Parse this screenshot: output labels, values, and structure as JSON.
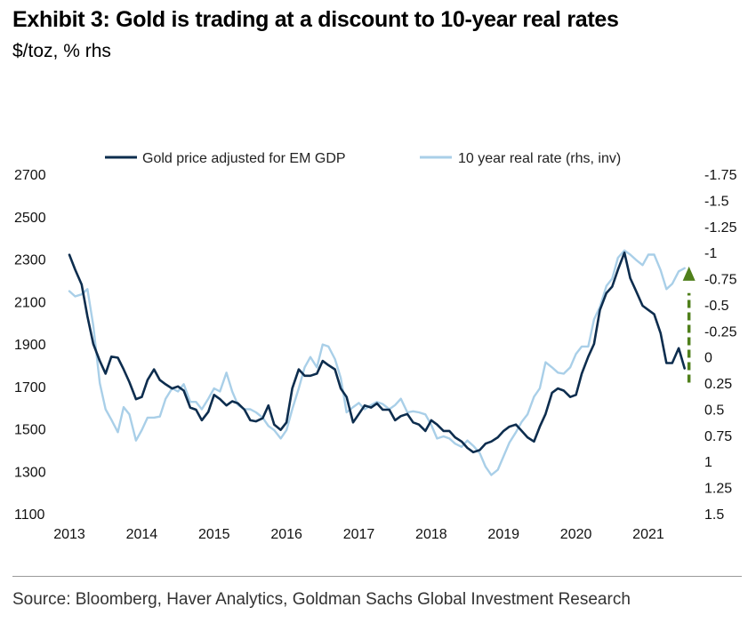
{
  "header": {
    "title": "Exhibit 3: Gold is trading at a discount to 10-year real rates",
    "subtitle": "$/toz, % rhs"
  },
  "footer": {
    "source": "Source: Bloomberg, Haver Analytics, Goldman Sachs Global Investment Research"
  },
  "colors": {
    "gold_series": "#0d2d4e",
    "real_rate_series": "#a9cfe8",
    "arrow": "#4f7f1b"
  },
  "chart_data": {
    "type": "line",
    "title": "Exhibit 3: Gold is trading at a discount to 10-year real rates",
    "subtitle": "$/toz, % rhs",
    "x_range": [
      2013.0,
      2021.75
    ],
    "x_tick_labels": [
      "2013",
      "2014",
      "2015",
      "2016",
      "2017",
      "2018",
      "2019",
      "2020",
      "2021"
    ],
    "y_left": {
      "range": [
        1100,
        2700
      ],
      "ticks": [
        "2700",
        "2500",
        "2300",
        "2100",
        "1900",
        "1700",
        "1500",
        "1300",
        "1100"
      ]
    },
    "y_right": {
      "range": [
        1.5,
        -1.75
      ],
      "inverted": true,
      "ticks": [
        "-1.75",
        "-1.5",
        "-1.25",
        "-1",
        "-0.75",
        "-0.5",
        "-0.25",
        "0",
        "0.25",
        "0.5",
        "0.75",
        "1",
        "1.25",
        "1.5"
      ]
    },
    "legend_position": "top",
    "annotation": "dashed upward arrow near the latest gold value",
    "series": [
      {
        "name": "Gold price adjusted for EM GDP",
        "axis": "left",
        "points": [
          [
            2013.0,
            2320
          ],
          [
            2013.08,
            2250
          ],
          [
            2013.17,
            2180
          ],
          [
            2013.25,
            2030
          ],
          [
            2013.33,
            1900
          ],
          [
            2013.42,
            1820
          ],
          [
            2013.5,
            1760
          ],
          [
            2013.58,
            1840
          ],
          [
            2013.67,
            1835
          ],
          [
            2013.75,
            1780
          ],
          [
            2013.83,
            1720
          ],
          [
            2013.92,
            1640
          ],
          [
            2014.0,
            1650
          ],
          [
            2014.08,
            1730
          ],
          [
            2014.17,
            1780
          ],
          [
            2014.25,
            1730
          ],
          [
            2014.33,
            1710
          ],
          [
            2014.42,
            1690
          ],
          [
            2014.5,
            1700
          ],
          [
            2014.58,
            1680
          ],
          [
            2014.67,
            1600
          ],
          [
            2014.75,
            1590
          ],
          [
            2014.83,
            1540
          ],
          [
            2014.92,
            1580
          ],
          [
            2015.0,
            1660
          ],
          [
            2015.08,
            1640
          ],
          [
            2015.17,
            1610
          ],
          [
            2015.25,
            1630
          ],
          [
            2015.33,
            1620
          ],
          [
            2015.42,
            1590
          ],
          [
            2015.5,
            1540
          ],
          [
            2015.58,
            1535
          ],
          [
            2015.67,
            1550
          ],
          [
            2015.75,
            1610
          ],
          [
            2015.83,
            1520
          ],
          [
            2015.92,
            1495
          ],
          [
            2016.0,
            1530
          ],
          [
            2016.08,
            1690
          ],
          [
            2016.17,
            1780
          ],
          [
            2016.25,
            1750
          ],
          [
            2016.33,
            1750
          ],
          [
            2016.42,
            1760
          ],
          [
            2016.5,
            1820
          ],
          [
            2016.58,
            1800
          ],
          [
            2016.67,
            1780
          ],
          [
            2016.75,
            1690
          ],
          [
            2016.83,
            1650
          ],
          [
            2016.92,
            1530
          ],
          [
            2017.0,
            1570
          ],
          [
            2017.08,
            1610
          ],
          [
            2017.17,
            1600
          ],
          [
            2017.25,
            1620
          ],
          [
            2017.33,
            1590
          ],
          [
            2017.42,
            1590
          ],
          [
            2017.5,
            1540
          ],
          [
            2017.58,
            1560
          ],
          [
            2017.67,
            1570
          ],
          [
            2017.75,
            1530
          ],
          [
            2017.83,
            1520
          ],
          [
            2017.92,
            1490
          ],
          [
            2018.0,
            1540
          ],
          [
            2018.08,
            1520
          ],
          [
            2018.17,
            1490
          ],
          [
            2018.25,
            1490
          ],
          [
            2018.33,
            1460
          ],
          [
            2018.42,
            1440
          ],
          [
            2018.5,
            1410
          ],
          [
            2018.58,
            1390
          ],
          [
            2018.67,
            1400
          ],
          [
            2018.75,
            1430
          ],
          [
            2018.83,
            1440
          ],
          [
            2018.92,
            1460
          ],
          [
            2019.0,
            1490
          ],
          [
            2019.08,
            1510
          ],
          [
            2019.17,
            1520
          ],
          [
            2019.25,
            1490
          ],
          [
            2019.33,
            1460
          ],
          [
            2019.42,
            1440
          ],
          [
            2019.5,
            1510
          ],
          [
            2019.58,
            1570
          ],
          [
            2019.67,
            1670
          ],
          [
            2019.75,
            1690
          ],
          [
            2019.83,
            1680
          ],
          [
            2019.92,
            1650
          ],
          [
            2020.0,
            1660
          ],
          [
            2020.08,
            1760
          ],
          [
            2020.17,
            1840
          ],
          [
            2020.25,
            1900
          ],
          [
            2020.33,
            2060
          ],
          [
            2020.42,
            2140
          ],
          [
            2020.5,
            2170
          ],
          [
            2020.58,
            2250
          ],
          [
            2020.67,
            2330
          ],
          [
            2020.75,
            2210
          ],
          [
            2020.83,
            2150
          ],
          [
            2020.92,
            2080
          ],
          [
            2021.0,
            2060
          ],
          [
            2021.08,
            2040
          ],
          [
            2021.17,
            1950
          ],
          [
            2021.25,
            1810
          ],
          [
            2021.33,
            1810
          ],
          [
            2021.42,
            1880
          ],
          [
            2021.5,
            1785
          ]
        ]
      },
      {
        "name": "10 year real rate (rhs, inv)",
        "axis": "right",
        "points": [
          [
            2013.0,
            -0.63
          ],
          [
            2013.08,
            -0.58
          ],
          [
            2013.17,
            -0.6
          ],
          [
            2013.25,
            -0.65
          ],
          [
            2013.33,
            -0.3
          ],
          [
            2013.42,
            0.25
          ],
          [
            2013.5,
            0.5
          ],
          [
            2013.58,
            0.6
          ],
          [
            2013.67,
            0.72
          ],
          [
            2013.75,
            0.48
          ],
          [
            2013.83,
            0.55
          ],
          [
            2013.92,
            0.8
          ],
          [
            2014.0,
            0.7
          ],
          [
            2014.08,
            0.58
          ],
          [
            2014.17,
            0.58
          ],
          [
            2014.25,
            0.57
          ],
          [
            2014.33,
            0.4
          ],
          [
            2014.42,
            0.3
          ],
          [
            2014.5,
            0.33
          ],
          [
            2014.58,
            0.26
          ],
          [
            2014.67,
            0.43
          ],
          [
            2014.75,
            0.43
          ],
          [
            2014.83,
            0.5
          ],
          [
            2014.92,
            0.4
          ],
          [
            2015.0,
            0.3
          ],
          [
            2015.08,
            0.33
          ],
          [
            2015.17,
            0.15
          ],
          [
            2015.25,
            0.33
          ],
          [
            2015.33,
            0.46
          ],
          [
            2015.42,
            0.5
          ],
          [
            2015.5,
            0.5
          ],
          [
            2015.58,
            0.53
          ],
          [
            2015.67,
            0.58
          ],
          [
            2015.75,
            0.66
          ],
          [
            2015.83,
            0.7
          ],
          [
            2015.92,
            0.78
          ],
          [
            2016.0,
            0.7
          ],
          [
            2016.08,
            0.5
          ],
          [
            2016.17,
            0.3
          ],
          [
            2016.25,
            0.1
          ],
          [
            2016.33,
            0.0
          ],
          [
            2016.42,
            0.1
          ],
          [
            2016.5,
            -0.12
          ],
          [
            2016.58,
            -0.1
          ],
          [
            2016.67,
            0.02
          ],
          [
            2016.75,
            0.2
          ],
          [
            2016.83,
            0.53
          ],
          [
            2016.92,
            0.48
          ],
          [
            2017.0,
            0.44
          ],
          [
            2017.08,
            0.5
          ],
          [
            2017.17,
            0.46
          ],
          [
            2017.25,
            0.43
          ],
          [
            2017.33,
            0.45
          ],
          [
            2017.42,
            0.5
          ],
          [
            2017.5,
            0.46
          ],
          [
            2017.58,
            0.4
          ],
          [
            2017.67,
            0.53
          ],
          [
            2017.75,
            0.52
          ],
          [
            2017.83,
            0.53
          ],
          [
            2017.92,
            0.55
          ],
          [
            2018.0,
            0.65
          ],
          [
            2018.08,
            0.78
          ],
          [
            2018.17,
            0.76
          ],
          [
            2018.25,
            0.78
          ],
          [
            2018.33,
            0.83
          ],
          [
            2018.42,
            0.86
          ],
          [
            2018.5,
            0.8
          ],
          [
            2018.58,
            0.85
          ],
          [
            2018.67,
            0.92
          ],
          [
            2018.75,
            1.05
          ],
          [
            2018.83,
            1.13
          ],
          [
            2018.92,
            1.08
          ],
          [
            2019.0,
            0.95
          ],
          [
            2019.08,
            0.82
          ],
          [
            2019.17,
            0.72
          ],
          [
            2019.25,
            0.62
          ],
          [
            2019.33,
            0.55
          ],
          [
            2019.42,
            0.38
          ],
          [
            2019.5,
            0.3
          ],
          [
            2019.58,
            0.05
          ],
          [
            2019.67,
            0.1
          ],
          [
            2019.75,
            0.15
          ],
          [
            2019.83,
            0.16
          ],
          [
            2019.92,
            0.1
          ],
          [
            2020.0,
            -0.03
          ],
          [
            2020.08,
            -0.1
          ],
          [
            2020.17,
            -0.1
          ],
          [
            2020.25,
            -0.36
          ],
          [
            2020.33,
            -0.48
          ],
          [
            2020.42,
            -0.68
          ],
          [
            2020.5,
            -0.75
          ],
          [
            2020.58,
            -0.95
          ],
          [
            2020.67,
            -1.02
          ],
          [
            2020.75,
            -0.98
          ],
          [
            2020.83,
            -0.93
          ],
          [
            2020.92,
            -0.88
          ],
          [
            2021.0,
            -0.98
          ],
          [
            2021.08,
            -0.98
          ],
          [
            2021.17,
            -0.83
          ],
          [
            2021.25,
            -0.65
          ],
          [
            2021.33,
            -0.7
          ],
          [
            2021.42,
            -0.82
          ],
          [
            2021.5,
            -0.85
          ]
        ]
      }
    ]
  }
}
